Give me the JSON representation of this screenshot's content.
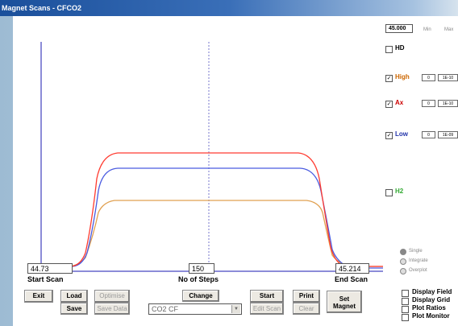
{
  "window": {
    "title": "Magnet Scans - CFCO2"
  },
  "plot": {
    "mode_options": [
      "Single",
      "Integrate",
      "Overplot"
    ]
  },
  "scan": {
    "start_value": "44.73",
    "start_label": "Start Scan",
    "steps_value": "150",
    "steps_label": "No of Steps",
    "end_value": "45.214",
    "end_label": "End Scan"
  },
  "buttons": {
    "exit": "Exit",
    "load": "Load",
    "save": "Save",
    "optimise": "Optimise",
    "save_data": "Save Data",
    "change": "Change",
    "start": "Start",
    "edit_scan": "Edit Scan",
    "print": "Print",
    "clear": "Clear",
    "set_magnet_1": "Set",
    "set_magnet_2": "Magnet"
  },
  "dropdown": {
    "value": "CO2 CF"
  },
  "right_panel": {
    "mass_value": "45.000",
    "min_label": "Min",
    "max_label": "Max",
    "channels": [
      {
        "label": "HD",
        "checked": false,
        "color": "#000000"
      },
      {
        "label": "High",
        "checked": true,
        "color": "#cc6600",
        "v1": "0",
        "v2": "1E-10"
      },
      {
        "label": "Ax",
        "checked": true,
        "color": "#cc0000",
        "v1": "0",
        "v2": "1E-10"
      },
      {
        "label": "Low",
        "checked": true,
        "color": "#2233aa",
        "v1": "0",
        "v2": "1E-09"
      },
      {
        "label": "H2",
        "checked": false,
        "color": "#33aa33"
      }
    ]
  },
  "display_options": [
    "Display Field",
    "Display Grid",
    "Plot Ratios",
    "Plot Monitor"
  ],
  "colors": {
    "red_trace": "#ff3b30",
    "blue_trace": "#4a5be0",
    "orange_trace": "#e0a050",
    "axis": "#6666cc"
  }
}
